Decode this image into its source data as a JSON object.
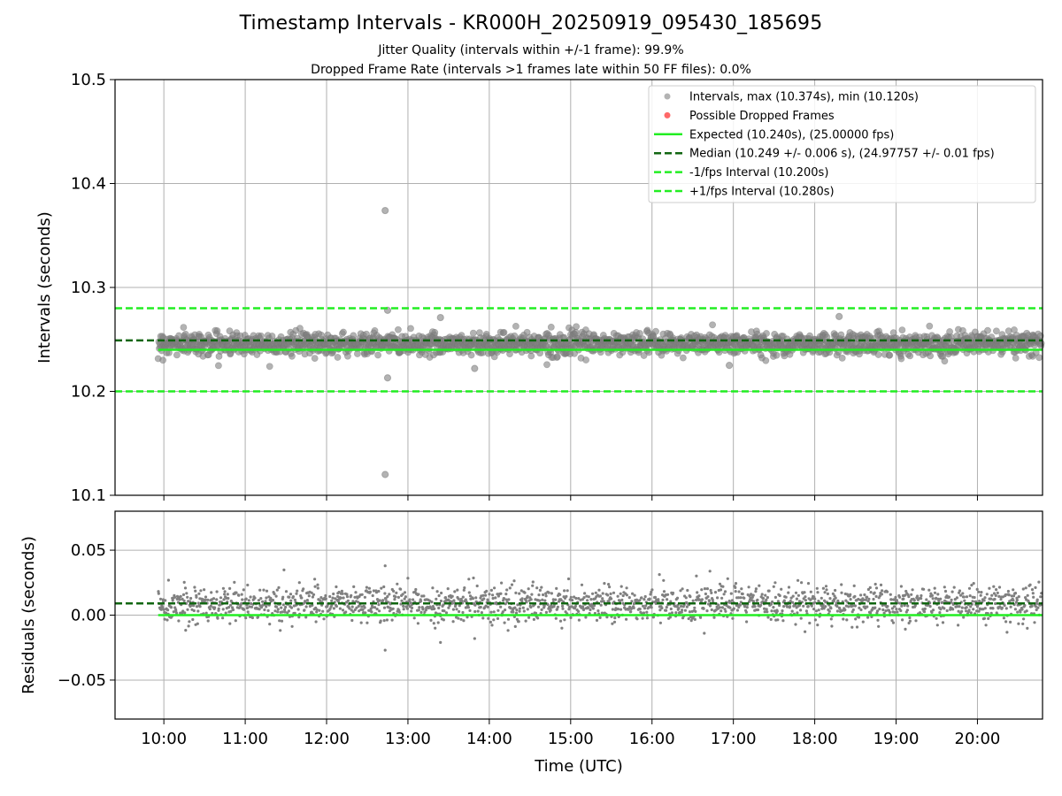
{
  "title": "Timestamp Intervals - KR000H_20250919_095430_185695",
  "subtitle_lines": [
    "Jitter Quality (intervals within +/-1 frame): 99.9%",
    "Dropped Frame Rate (intervals >1 frames late within 50 FF files): 0.0%"
  ],
  "colors": {
    "points": "#808080",
    "dropped": "#ff4d4d",
    "expected": "#22ee22",
    "median": "#116611",
    "interval_bounds": "#22ee22",
    "grid": "#b0b0b0"
  },
  "chart_data": [
    {
      "type": "scatter",
      "panel": "top",
      "ylabel": "Intervals (seconds)",
      "xlabel": "",
      "ylim": [
        10.1,
        10.5
      ],
      "yticks": [
        10.1,
        10.2,
        10.3,
        10.4,
        10.5
      ],
      "ytick_labels": [
        "10.1",
        "10.2",
        "10.3",
        "10.4",
        "10.5"
      ],
      "x_range_hours": [
        9.4,
        20.8
      ],
      "grid": true,
      "legend_position": "top-right",
      "series": [
        {
          "name": "Intervals, max (10.374s), min (10.120s)",
          "kind": "scatter",
          "x_start_hour": 9.93,
          "x_end_hour": 20.8,
          "center": 10.246,
          "spread": 0.007,
          "outliers": [
            {
              "x_hour": 12.72,
              "y": 10.374
            },
            {
              "x_hour": 12.72,
              "y": 10.12
            },
            {
              "x_hour": 12.75,
              "y": 10.278
            },
            {
              "x_hour": 12.75,
              "y": 10.213
            },
            {
              "x_hour": 13.4,
              "y": 10.271
            },
            {
              "x_hour": 13.82,
              "y": 10.222
            },
            {
              "x_hour": 18.3,
              "y": 10.272
            },
            {
              "x_hour": 16.95,
              "y": 10.225
            }
          ]
        },
        {
          "name": "Possible Dropped Frames",
          "kind": "scatter",
          "points": []
        },
        {
          "name": "Expected (10.240s), (25.00000 fps)",
          "kind": "hline",
          "y": 10.24,
          "x_start_hour": 9.93,
          "style": "solid"
        },
        {
          "name": "Median (10.249 +/- 0.006 s), (24.97757 +/- 0.01 fps)",
          "kind": "hline",
          "y": 10.249,
          "style": "dashed"
        },
        {
          "name": "-1/fps Interval (10.200s)",
          "kind": "hline",
          "y": 10.2,
          "style": "dashed"
        },
        {
          "name": "+1/fps Interval (10.280s)",
          "kind": "hline",
          "y": 10.28,
          "style": "dashed"
        }
      ]
    },
    {
      "type": "scatter",
      "panel": "bottom",
      "ylabel": "Residuals (seconds)",
      "xlabel": "Time (UTC)",
      "ylim": [
        -0.08,
        0.08
      ],
      "yticks": [
        -0.05,
        0.0,
        0.05
      ],
      "ytick_labels": [
        "−0.05",
        "0.00",
        "0.05"
      ],
      "x_range_hours": [
        9.4,
        20.8
      ],
      "xticks_hours": [
        10,
        11,
        12,
        13,
        14,
        15,
        16,
        17,
        18,
        19,
        20
      ],
      "xtick_labels": [
        "10:00",
        "11:00",
        "12:00",
        "13:00",
        "14:00",
        "15:00",
        "16:00",
        "17:00",
        "18:00",
        "19:00",
        "20:00"
      ],
      "grid": true,
      "series": [
        {
          "kind": "scatter",
          "x_start_hour": 9.93,
          "x_end_hour": 20.8,
          "center": 0.0085,
          "spread": 0.007,
          "outliers": [
            {
              "x_hour": 12.72,
              "y": 0.038
            },
            {
              "x_hour": 12.72,
              "y": -0.027
            },
            {
              "x_hour": 13.4,
              "y": -0.021
            },
            {
              "x_hour": 13.82,
              "y": -0.018
            }
          ]
        },
        {
          "kind": "hline",
          "y": 0.0,
          "style": "solid",
          "x_start_hour": 9.93
        },
        {
          "kind": "hline",
          "y": 0.009,
          "style": "dashed"
        }
      ]
    }
  ]
}
